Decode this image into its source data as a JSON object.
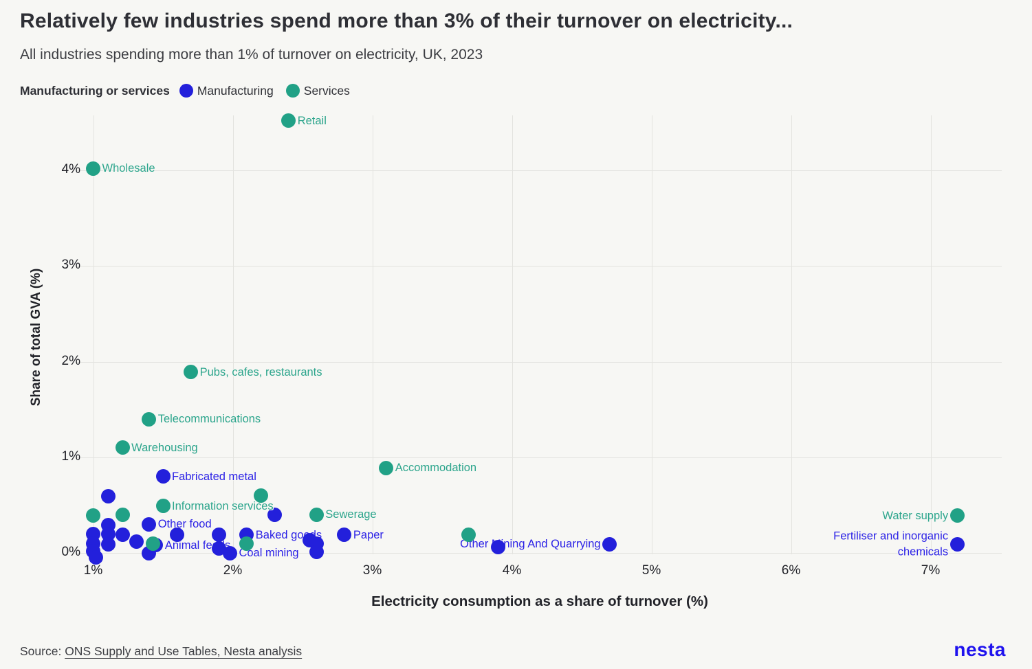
{
  "header": {
    "title": "Relatively few industries spend more than 3% of their turnover on electricity...",
    "subtitle": "All industries spending more than 1% of turnover on electricity, UK, 2023"
  },
  "legend": {
    "title": "Manufacturing or services",
    "items": [
      {
        "label": "Manufacturing",
        "color": "#2320DB"
      },
      {
        "label": "Services",
        "color": "#21A186"
      }
    ]
  },
  "chart_data": {
    "type": "scatter",
    "title": "Relatively few industries spend more than 3% of their turnover on electricity...",
    "xlabel": "Electricity consumption as a share of turnover (%)",
    "ylabel": "Share of total GVA (%)",
    "xlim": [
      0.87,
      7.52
    ],
    "ylim": [
      -0.1,
      4.6
    ],
    "grid": true,
    "legend_position": "top",
    "x_ticks": [
      {
        "value": 1,
        "label": "1%"
      },
      {
        "value": 2,
        "label": "2%"
      },
      {
        "value": 3,
        "label": "3%"
      },
      {
        "value": 4,
        "label": "4%"
      },
      {
        "value": 5,
        "label": "5%"
      },
      {
        "value": 6,
        "label": "6%"
      },
      {
        "value": 7,
        "label": "7%"
      }
    ],
    "y_ticks": [
      {
        "value": 0,
        "label": "0%"
      },
      {
        "value": 1,
        "label": "1%"
      },
      {
        "value": 2,
        "label": "2%"
      },
      {
        "value": 3,
        "label": "3%"
      },
      {
        "value": 4,
        "label": "4%"
      }
    ],
    "series": [
      {
        "name": "Manufacturing",
        "color": "#2320DB",
        "label_color": "#2B21E6",
        "points": [
          {
            "x": 1.5,
            "y": 0.8,
            "label": "Fabricated metal",
            "side": "right"
          },
          {
            "x": 1.4,
            "y": 0.3,
            "label": "Other food",
            "side": "right"
          },
          {
            "x": 2.1,
            "y": 0.19,
            "label": "Baked goods",
            "side": "right"
          },
          {
            "x": 2.8,
            "y": 0.19,
            "label": "Paper",
            "side": "right"
          },
          {
            "x": 1.45,
            "y": 0.08,
            "label": "Animal feeds",
            "side": "right"
          },
          {
            "x": 1.98,
            "y": 0.0,
            "label": "Coal mining",
            "side": "right"
          },
          {
            "x": 4.7,
            "y": 0.09,
            "label": "Other Mining And Quarrying",
            "side": "left"
          },
          {
            "x": 7.19,
            "y": 0.09,
            "label": "Fertiliser and inorganic\nchemicals",
            "side": "left"
          },
          {
            "x": 1.11,
            "y": 0.59
          },
          {
            "x": 1.11,
            "y": 0.29
          },
          {
            "x": 1.0,
            "y": 0.2
          },
          {
            "x": 1.11,
            "y": 0.2
          },
          {
            "x": 1.21,
            "y": 0.19
          },
          {
            "x": 1.6,
            "y": 0.19
          },
          {
            "x": 1.9,
            "y": 0.19
          },
          {
            "x": 2.3,
            "y": 0.4
          },
          {
            "x": 1.0,
            "y": 0.1
          },
          {
            "x": 1.11,
            "y": 0.09
          },
          {
            "x": 1.31,
            "y": 0.12
          },
          {
            "x": 1.9,
            "y": 0.05
          },
          {
            "x": 2.55,
            "y": 0.13
          },
          {
            "x": 2.6,
            "y": 0.1
          },
          {
            "x": 2.6,
            "y": 0.01
          },
          {
            "x": 1.0,
            "y": 0.02
          },
          {
            "x": 1.02,
            "y": -0.05
          },
          {
            "x": 1.4,
            "y": 0.0
          },
          {
            "x": 3.9,
            "y": 0.06
          }
        ]
      },
      {
        "name": "Services",
        "color": "#21A186",
        "label_color": "#2CA58C",
        "points": [
          {
            "x": 2.4,
            "y": 4.52,
            "label": "Retail",
            "side": "right"
          },
          {
            "x": 1.0,
            "y": 4.02,
            "label": "Wholesale",
            "side": "right"
          },
          {
            "x": 1.7,
            "y": 1.89,
            "label": "Pubs, cafes, restaurants",
            "side": "right"
          },
          {
            "x": 1.4,
            "y": 1.4,
            "label": "Telecommunications",
            "side": "right"
          },
          {
            "x": 1.21,
            "y": 1.1,
            "label": "Warehousing",
            "side": "right"
          },
          {
            "x": 3.1,
            "y": 0.89,
            "label": "Accommodation",
            "side": "right"
          },
          {
            "x": 1.5,
            "y": 0.49,
            "label": "Information services",
            "side": "right"
          },
          {
            "x": 2.6,
            "y": 0.4,
            "label": "Sewerage",
            "side": "right"
          },
          {
            "x": 7.19,
            "y": 0.39,
            "label": "Water supply",
            "side": "left"
          },
          {
            "x": 1.0,
            "y": 0.39
          },
          {
            "x": 1.21,
            "y": 0.4
          },
          {
            "x": 2.2,
            "y": 0.6
          },
          {
            "x": 3.69,
            "y": 0.19
          },
          {
            "x": 1.43,
            "y": 0.1
          },
          {
            "x": 2.1,
            "y": 0.1
          }
        ]
      }
    ]
  },
  "footer": {
    "source_prefix": "Source: ",
    "source_link": "ONS Supply and Use Tables, Nesta analysis",
    "logo": "nesta"
  }
}
